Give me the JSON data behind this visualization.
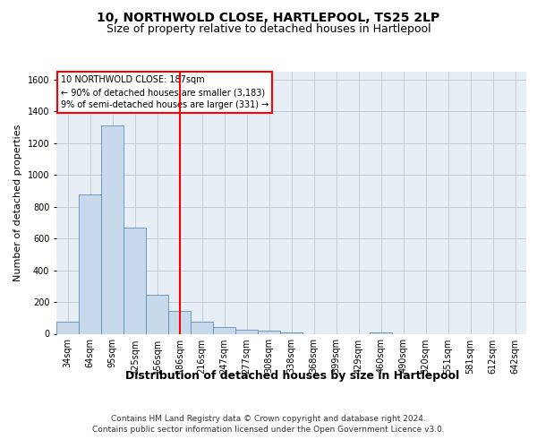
{
  "title": "10, NORTHWOLD CLOSE, HARTLEPOOL, TS25 2LP",
  "subtitle": "Size of property relative to detached houses in Hartlepool",
  "xlabel": "Distribution of detached houses by size in Hartlepool",
  "ylabel": "Number of detached properties",
  "categories": [
    "34sqm",
    "64sqm",
    "95sqm",
    "125sqm",
    "156sqm",
    "186sqm",
    "216sqm",
    "247sqm",
    "277sqm",
    "308sqm",
    "338sqm",
    "368sqm",
    "399sqm",
    "429sqm",
    "460sqm",
    "490sqm",
    "520sqm",
    "551sqm",
    "581sqm",
    "612sqm",
    "642sqm"
  ],
  "values": [
    75,
    880,
    1310,
    670,
    245,
    145,
    75,
    45,
    25,
    20,
    10,
    0,
    0,
    0,
    10,
    0,
    0,
    0,
    0,
    0,
    0
  ],
  "bar_color": "#c9d9ec",
  "bar_edge_color": "#5b8db8",
  "grid_color": "#c0c8d8",
  "bg_color": "#e8eef5",
  "vline_x": 5.0,
  "vline_color": "red",
  "annotation_text": "10 NORTHWOLD CLOSE: 187sqm\n← 90% of detached houses are smaller (3,183)\n9% of semi-detached houses are larger (331) →",
  "annotation_box_color": "white",
  "annotation_box_edgecolor": "red",
  "footer_line1": "Contains HM Land Registry data © Crown copyright and database right 2024.",
  "footer_line2": "Contains public sector information licensed under the Open Government Licence v3.0.",
  "ylim": [
    0,
    1650
  ],
  "yticks": [
    0,
    200,
    400,
    600,
    800,
    1000,
    1200,
    1400,
    1600
  ],
  "title_fontsize": 10,
  "subtitle_fontsize": 9,
  "xlabel_fontsize": 9,
  "ylabel_fontsize": 8,
  "tick_fontsize": 7,
  "annotation_fontsize": 7,
  "footer_fontsize": 6.5
}
